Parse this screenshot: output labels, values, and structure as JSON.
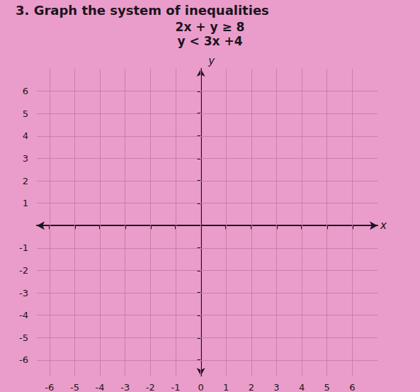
{
  "document": {
    "title": "3. Graph the system of inequalities",
    "inequalities": [
      "2x + y ≥ 8",
      "y < 3x +4"
    ]
  },
  "chart_data": {
    "type": "scatter",
    "x_label": "x",
    "y_label": "y",
    "x": [],
    "values": [],
    "xlim": [
      -6.5,
      7
    ],
    "ylim": [
      -6.7,
      7
    ],
    "xticks": [
      -6,
      -5,
      -4,
      -3,
      -2,
      -1,
      0,
      1,
      2,
      3,
      4,
      5,
      6
    ],
    "yticks": [
      -6,
      -5,
      -4,
      -3,
      -2,
      -1,
      1,
      2,
      3,
      4,
      5,
      6
    ],
    "grid": true
  }
}
